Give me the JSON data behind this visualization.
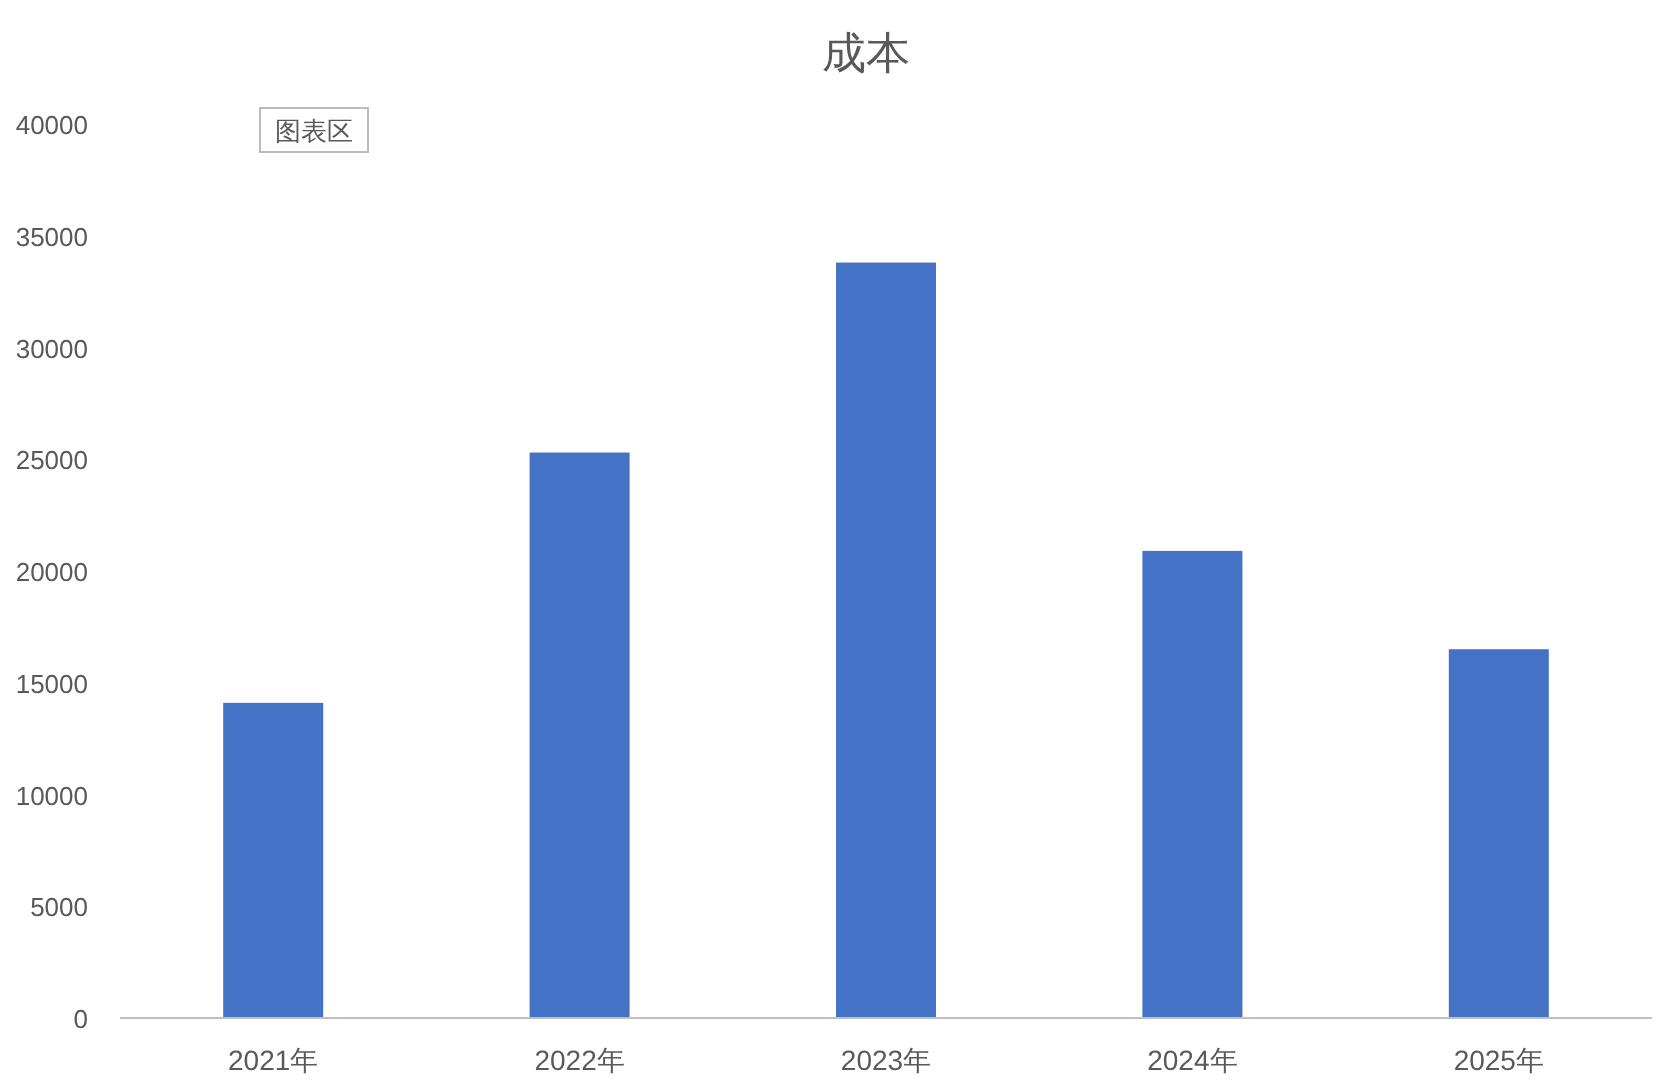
{
  "chart_data": {
    "type": "bar",
    "title": "成本",
    "categories": [
      "2021年",
      "2022年",
      "2023年",
      "2024年",
      "2025年"
    ],
    "values": [
      14100,
      25300,
      33800,
      20900,
      16500
    ],
    "color": "#4472c4",
    "ylim": [
      0,
      40000
    ],
    "yticks": [
      0,
      5000,
      10000,
      15000,
      20000,
      25000,
      30000,
      35000,
      40000
    ],
    "grid": false,
    "annotations": [
      "图表区"
    ]
  }
}
